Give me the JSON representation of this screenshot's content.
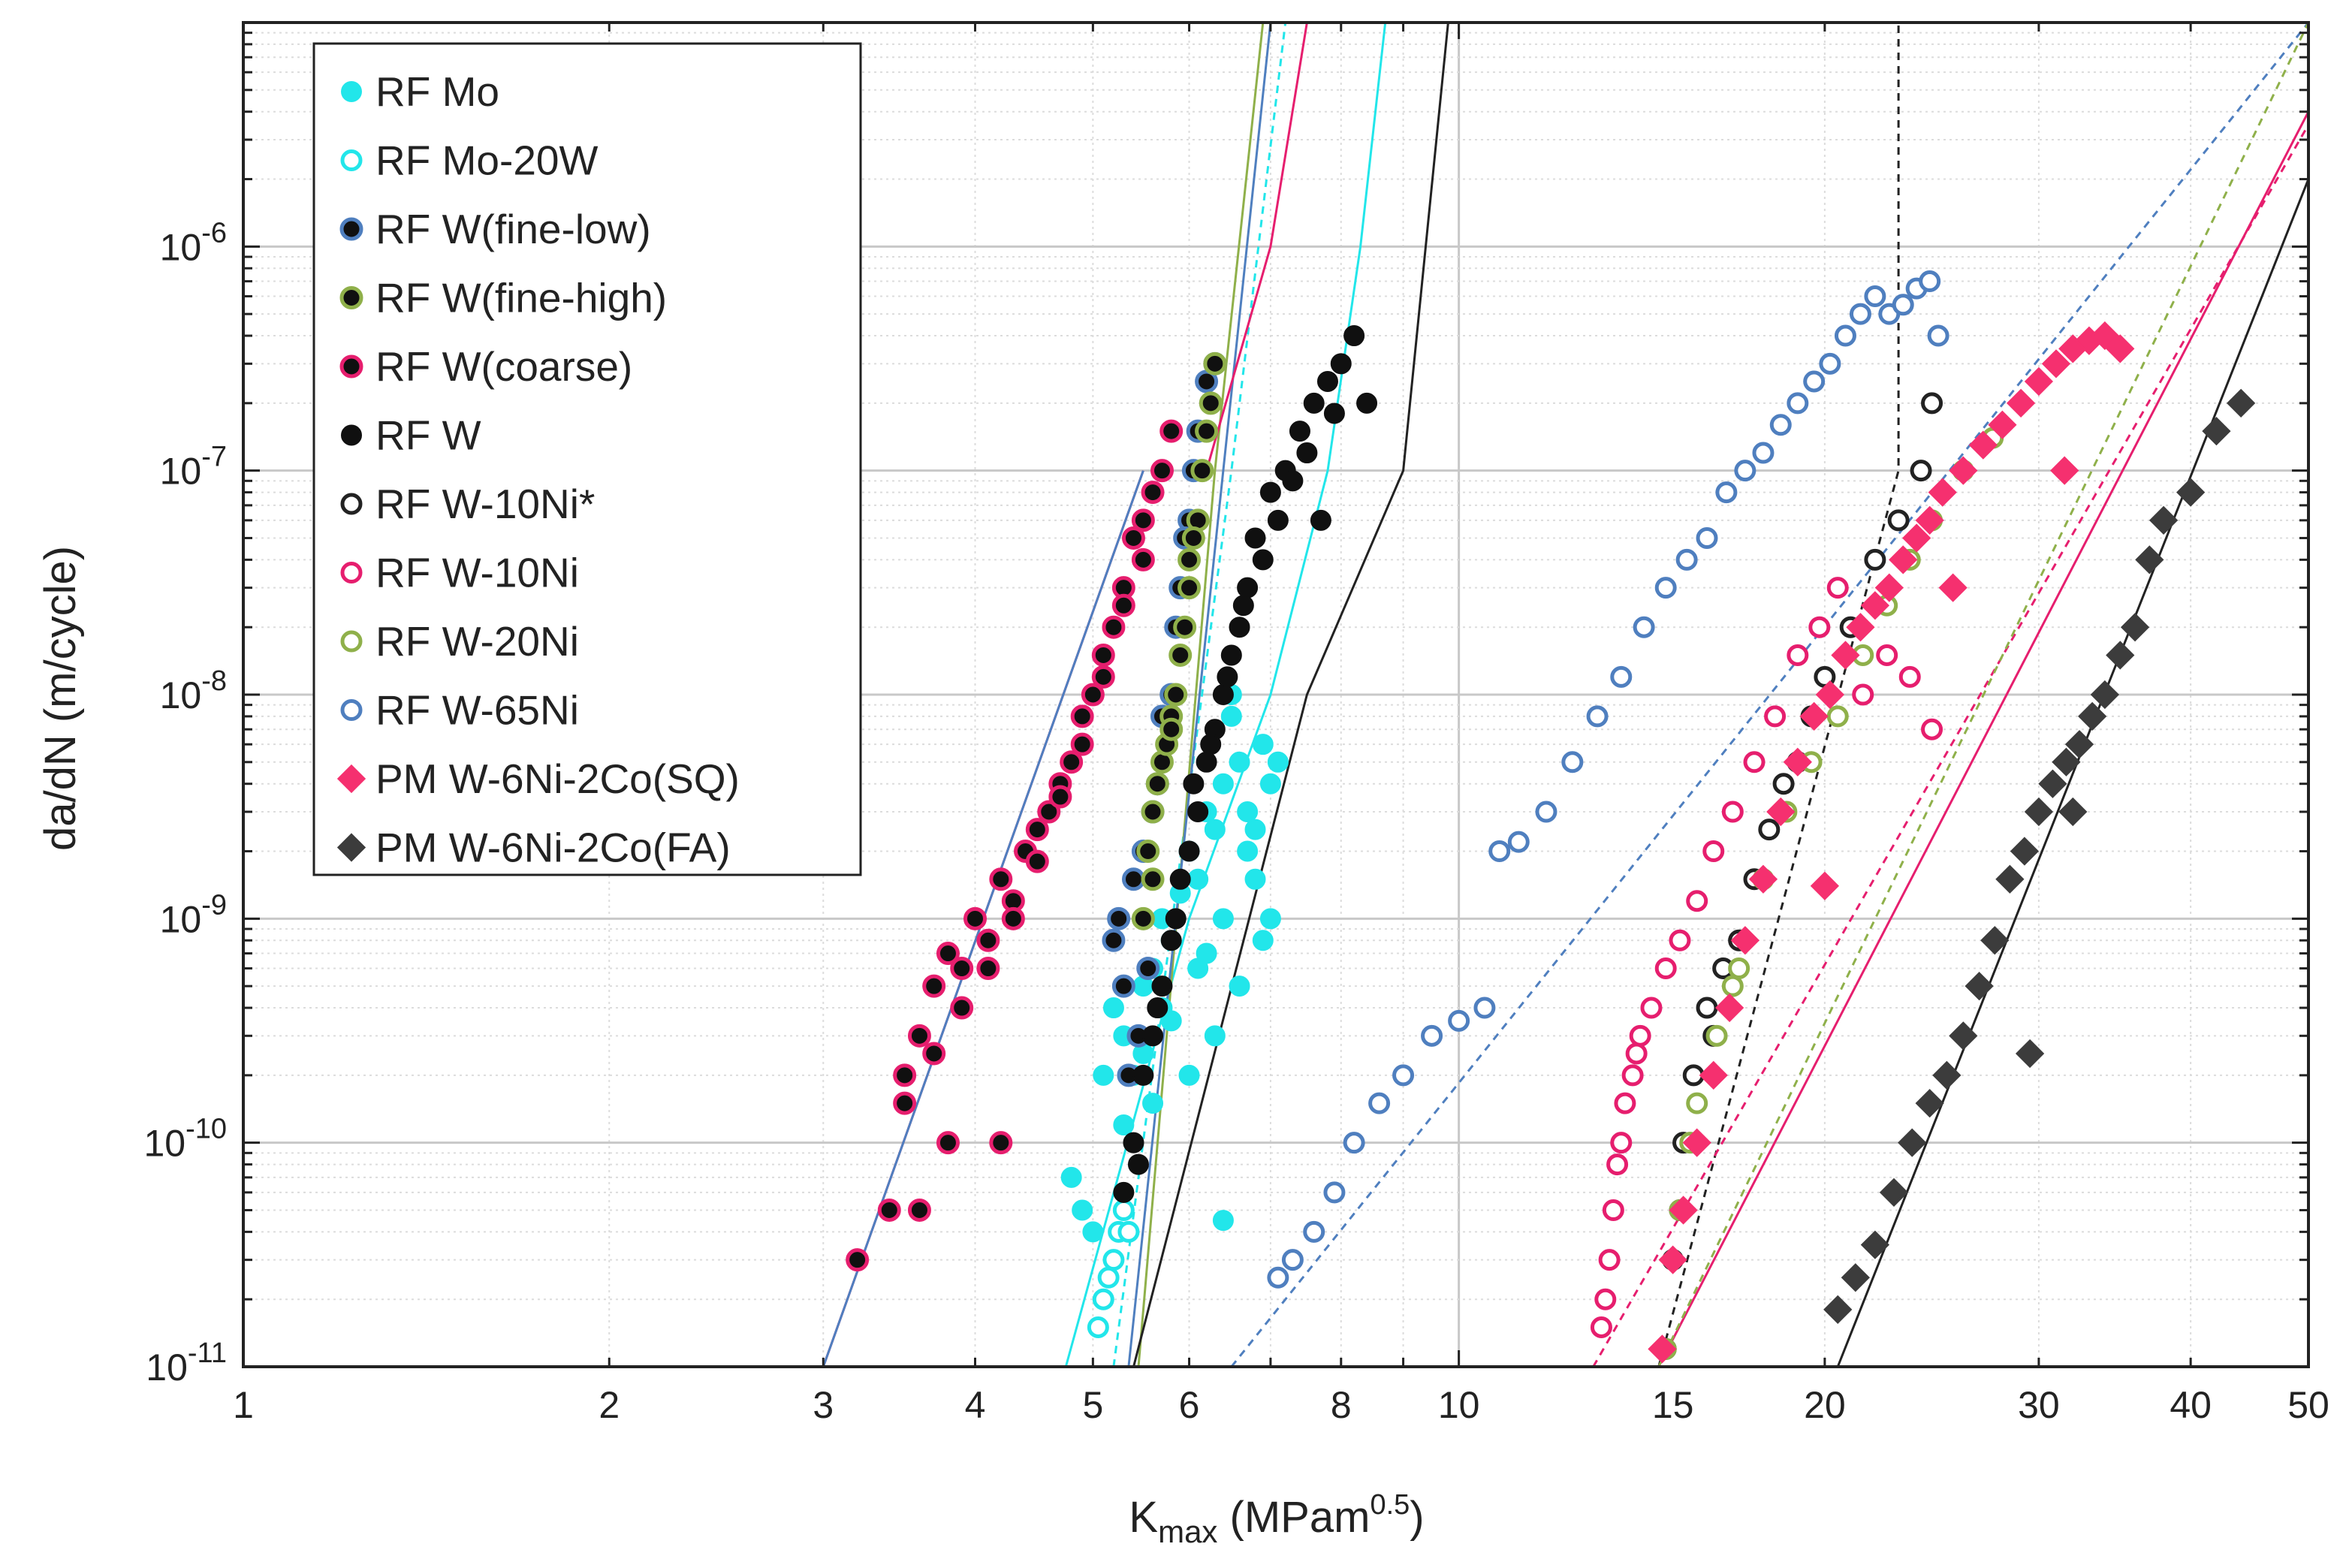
{
  "chart_data": {
    "type": "scatter",
    "x_scale": "log",
    "y_scale": "log",
    "xlim": [
      1,
      50
    ],
    "ylim": [
      1e-11,
      1e-05
    ],
    "grid": "on (major and minor)",
    "legend_position": "top-left",
    "xlabel": {
      "main": "K",
      "sub": "max",
      "unit": " (MPam",
      "sup": "0.5",
      "close": ")"
    },
    "ylabel": "da/dN (m/cycle)",
    "x_ticks": [
      {
        "value": 1,
        "label": "1"
      },
      {
        "value": 2,
        "label": "2"
      },
      {
        "value": 3,
        "label": "3"
      },
      {
        "value": 4,
        "label": "4"
      },
      {
        "value": 5,
        "label": "5"
      },
      {
        "value": 6,
        "label": "6"
      },
      {
        "value": 8,
        "label": "8"
      },
      {
        "value": 10,
        "label": "10"
      },
      {
        "value": 15,
        "label": "15"
      },
      {
        "value": 20,
        "label": "20"
      },
      {
        "value": 30,
        "label": "30"
      },
      {
        "value": 40,
        "label": "40"
      },
      {
        "value": 50,
        "label": "50"
      }
    ],
    "y_ticks": [
      {
        "value": 1e-11,
        "base": "10",
        "exp": "-11"
      },
      {
        "value": 1e-10,
        "base": "10",
        "exp": "-10"
      },
      {
        "value": 1e-09,
        "base": "10",
        "exp": "-9"
      },
      {
        "value": 1e-08,
        "base": "10",
        "exp": "-8"
      },
      {
        "value": 1e-07,
        "base": "10",
        "exp": "-7"
      },
      {
        "value": 1e-06,
        "base": "10",
        "exp": "-6"
      }
    ],
    "series": [
      {
        "name": "RF Mo",
        "marker": "circle",
        "fill": "#22e6ea",
        "edge": "#22e6ea",
        "x": [
          4.8,
          4.9,
          5.0,
          5.1,
          5.2,
          5.3,
          5.4,
          5.5,
          5.6,
          5.7,
          5.8,
          5.9,
          6.0,
          6.1,
          6.2,
          6.3,
          6.4,
          6.5,
          6.6,
          6.7,
          6.8,
          6.9,
          7.0,
          5.5,
          5.8,
          6.1,
          6.4,
          6.7,
          7.0,
          5.3,
          5.6,
          6.0,
          6.3,
          6.6,
          6.9,
          5.7,
          6.2,
          6.5,
          6.8,
          7.1,
          6.4
        ],
        "y": [
          7e-11,
          5e-11,
          4e-11,
          2e-10,
          4e-10,
          3e-10,
          2e-10,
          5e-10,
          6e-10,
          1e-09,
          8e-10,
          1.3e-09,
          2e-09,
          1.5e-09,
          3e-09,
          2.5e-09,
          4e-09,
          1e-08,
          5e-09,
          3e-09,
          1.5e-09,
          6e-09,
          4e-09,
          2.5e-10,
          3.5e-10,
          6e-10,
          1e-09,
          2e-09,
          1e-09,
          1.2e-10,
          1.5e-10,
          2e-10,
          3e-10,
          5e-10,
          8e-10,
          4e-10,
          7e-10,
          8e-09,
          2.5e-09,
          5e-09,
          4.5e-11
        ]
      },
      {
        "name": "RF Mo-20W",
        "marker": "circle",
        "fill": "none",
        "edge": "#22e6ea",
        "x": [
          5.05,
          5.1,
          5.15,
          5.2,
          5.25,
          5.3,
          5.35
        ],
        "y": [
          1.5e-11,
          2e-11,
          2.5e-11,
          3e-11,
          4e-11,
          5e-11,
          4e-11
        ]
      },
      {
        "name": "RF W(fine-low)",
        "marker": "circle",
        "fill": "#101010",
        "edge": "#4f7fbf",
        "x": [
          5.2,
          5.3,
          5.4,
          5.5,
          5.6,
          5.7,
          5.8,
          5.9,
          6.0,
          6.1,
          6.2,
          5.35,
          5.45,
          5.65,
          5.85,
          6.05,
          6.3,
          5.25,
          5.55,
          5.95
        ],
        "y": [
          8e-10,
          5e-10,
          1.5e-09,
          2e-09,
          3e-09,
          8e-09,
          1e-08,
          3e-08,
          6e-08,
          1.5e-07,
          2.5e-07,
          2e-10,
          3e-10,
          4e-09,
          2e-08,
          1e-07,
          3e-07,
          1e-09,
          6e-10,
          5e-08
        ]
      },
      {
        "name": "RF W(fine-high)",
        "marker": "circle",
        "fill": "#101010",
        "edge": "#8fb04a",
        "x": [
          5.5,
          5.55,
          5.6,
          5.7,
          5.8,
          5.9,
          6.0,
          6.1,
          6.2,
          6.3,
          5.65,
          5.75,
          5.85,
          5.95,
          6.05,
          6.15,
          6.25,
          5.6,
          5.8,
          6.0
        ],
        "y": [
          1e-09,
          2e-09,
          3e-09,
          5e-09,
          8e-09,
          1.5e-08,
          3e-08,
          6e-08,
          1.5e-07,
          3e-07,
          4e-09,
          6e-09,
          1e-08,
          2e-08,
          5e-08,
          1e-07,
          2e-07,
          1.5e-09,
          7e-09,
          4e-08
        ]
      },
      {
        "name": "RF W(coarse)",
        "marker": "circle",
        "fill": "#101010",
        "edge": "#e61e6e",
        "x": [
          3.2,
          3.4,
          3.5,
          3.6,
          3.7,
          3.8,
          3.9,
          4.0,
          4.1,
          4.2,
          4.3,
          4.4,
          4.5,
          4.6,
          4.7,
          4.8,
          4.9,
          5.0,
          5.1,
          5.2,
          5.3,
          5.4,
          5.5,
          5.6,
          5.7,
          5.8,
          3.5,
          3.7,
          3.9,
          4.1,
          4.3,
          4.5,
          4.7,
          4.9,
          5.1,
          5.3,
          5.5,
          3.6,
          3.8,
          4.2
        ],
        "y": [
          3e-11,
          5e-11,
          1.5e-10,
          3e-10,
          5e-10,
          7e-10,
          6e-10,
          1e-09,
          8e-10,
          1.5e-09,
          1.2e-09,
          2e-09,
          2.5e-09,
          3e-09,
          4e-09,
          5e-09,
          8e-09,
          1e-08,
          1.5e-08,
          2e-08,
          3e-08,
          5e-08,
          6e-08,
          8e-08,
          1e-07,
          1.5e-07,
          2e-10,
          2.5e-10,
          4e-10,
          6e-10,
          1e-09,
          1.8e-09,
          3.5e-09,
          6e-09,
          1.2e-08,
          2.5e-08,
          4e-08,
          5e-11,
          1e-10,
          1e-10
        ]
      },
      {
        "name": "RF W",
        "marker": "circle",
        "fill": "#101010",
        "edge": "#101010",
        "x": [
          5.3,
          5.4,
          5.5,
          5.6,
          5.7,
          5.8,
          5.9,
          6.0,
          6.1,
          6.2,
          6.3,
          6.4,
          6.5,
          6.6,
          6.7,
          6.8,
          7.0,
          7.2,
          7.4,
          7.6,
          7.8,
          8.0,
          8.2,
          8.4,
          5.45,
          5.65,
          5.85,
          6.05,
          6.25,
          6.45,
          6.65,
          6.9,
          7.1,
          7.3,
          7.5,
          7.7,
          7.9
        ],
        "y": [
          6e-11,
          1e-10,
          2e-10,
          3e-10,
          5e-10,
          8e-10,
          1.5e-09,
          2e-09,
          3e-09,
          5e-09,
          7e-09,
          1e-08,
          1.5e-08,
          2e-08,
          3e-08,
          5e-08,
          8e-08,
          1e-07,
          1.5e-07,
          2e-07,
          2.5e-07,
          3e-07,
          4e-07,
          2e-07,
          8e-11,
          4e-10,
          1e-09,
          4e-09,
          6e-09,
          1.2e-08,
          2.5e-08,
          4e-08,
          6e-08,
          9e-08,
          1.2e-07,
          6e-08,
          1.8e-07
        ]
      },
      {
        "name": "RF W-10Ni*",
        "marker": "circle",
        "fill": "none",
        "edge": "#222222",
        "x": [
          14.8,
          15.0,
          15.3,
          15.6,
          16.0,
          16.5,
          17.0,
          17.5,
          18.0,
          18.5,
          19.0,
          19.5,
          20.0,
          21.0,
          22.0,
          23.0,
          24.0,
          24.5,
          15.2,
          16.2
        ],
        "y": [
          1.2e-11,
          3e-11,
          1e-10,
          2e-10,
          4e-10,
          6e-10,
          8e-10,
          1.5e-09,
          2.5e-09,
          4e-09,
          5e-09,
          8e-09,
          1.2e-08,
          2e-08,
          4e-08,
          6e-08,
          1e-07,
          2e-07,
          5e-11,
          3e-10
        ]
      },
      {
        "name": "RF W-10Ni",
        "marker": "circle",
        "fill": "none",
        "edge": "#e61e6e",
        "x": [
          13.1,
          13.2,
          13.3,
          13.4,
          13.5,
          13.7,
          13.9,
          14.1,
          14.4,
          14.8,
          15.2,
          15.7,
          16.2,
          16.8,
          17.5,
          18.2,
          19.0,
          19.8,
          20.5,
          21.5,
          22.5,
          23.5,
          24.5,
          13.6,
          14.0
        ],
        "y": [
          1.5e-11,
          2e-11,
          3e-11,
          5e-11,
          8e-11,
          1.5e-10,
          2e-10,
          3e-10,
          4e-10,
          6e-10,
          8e-10,
          1.2e-09,
          2e-09,
          3e-09,
          5e-09,
          8e-09,
          1.5e-08,
          2e-08,
          3e-08,
          1e-08,
          1.5e-08,
          1.2e-08,
          7e-09,
          1e-10,
          2.5e-10
        ]
      },
      {
        "name": "RF W-20Ni",
        "marker": "circle",
        "fill": "none",
        "edge": "#8fb04a",
        "x": [
          14.8,
          15.2,
          15.7,
          16.3,
          17.0,
          17.8,
          18.6,
          19.5,
          20.5,
          21.5,
          22.5,
          23.5,
          24.5,
          26.0,
          27.5,
          15.5,
          16.8
        ],
        "y": [
          1.2e-11,
          5e-11,
          1.5e-10,
          3e-10,
          6e-10,
          1.5e-09,
          3e-09,
          5e-09,
          8e-09,
          1.5e-08,
          2.5e-08,
          4e-08,
          6e-08,
          1e-07,
          1.4e-07,
          1e-10,
          5e-10
        ]
      },
      {
        "name": "RF W-65Ni",
        "marker": "circle",
        "fill": "none",
        "edge": "#4f7fbf",
        "x": [
          7.1,
          7.3,
          7.6,
          7.9,
          8.2,
          8.6,
          9.0,
          9.5,
          10.0,
          10.5,
          10.8,
          11.2,
          11.8,
          12.4,
          13.0,
          13.6,
          14.2,
          14.8,
          15.4,
          16.0,
          16.6,
          17.2,
          17.8,
          18.4,
          19.0,
          19.6,
          20.2,
          20.8,
          21.4,
          22.0,
          22.6,
          23.2,
          23.8,
          24.4,
          24.8
        ],
        "y": [
          2.5e-11,
          3e-11,
          4e-11,
          6e-11,
          1e-10,
          1.5e-10,
          2e-10,
          3e-10,
          3.5e-10,
          4e-10,
          2e-09,
          2.2e-09,
          3e-09,
          5e-09,
          8e-09,
          1.2e-08,
          2e-08,
          3e-08,
          4e-08,
          5e-08,
          8e-08,
          1e-07,
          1.2e-07,
          1.6e-07,
          2e-07,
          2.5e-07,
          3e-07,
          4e-07,
          5e-07,
          6e-07,
          5e-07,
          5.5e-07,
          6.5e-07,
          7e-07,
          4e-07
        ]
      },
      {
        "name": "PM W-6Ni-2Co(SQ)",
        "marker": "diamond",
        "fill": "#f5306f",
        "edge": "#f5306f",
        "x": [
          14.7,
          15.0,
          15.3,
          15.7,
          16.2,
          16.7,
          17.2,
          17.8,
          18.4,
          19.0,
          19.6,
          20.2,
          20.8,
          21.4,
          22.0,
          22.6,
          23.2,
          23.8,
          24.4,
          25.0,
          26.0,
          27.0,
          28.0,
          29.0,
          30.0,
          31.0,
          32.0,
          33.0,
          34.0,
          35.0,
          20.0,
          25.5,
          31.5
        ],
        "y": [
          1.2e-11,
          3e-11,
          5e-11,
          1e-10,
          2e-10,
          4e-10,
          8e-10,
          1.5e-09,
          3e-09,
          5e-09,
          8e-09,
          1e-08,
          1.5e-08,
          2e-08,
          2.5e-08,
          3e-08,
          4e-08,
          5e-08,
          6e-08,
          8e-08,
          1e-07,
          1.3e-07,
          1.6e-07,
          2e-07,
          2.5e-07,
          3e-07,
          3.5e-07,
          3.8e-07,
          4e-07,
          3.5e-07,
          1.4e-09,
          3e-08,
          1e-07
        ]
      },
      {
        "name": "PM W-6Ni-2Co(FA)",
        "marker": "diamond",
        "fill": "#3c3c3c",
        "edge": "#3c3c3c",
        "x": [
          20.5,
          21.2,
          22.0,
          22.8,
          23.6,
          24.4,
          25.2,
          26.0,
          26.8,
          27.6,
          28.4,
          29.2,
          30.0,
          30.8,
          31.6,
          32.4,
          33.2,
          34.0,
          35.0,
          36.0,
          37.0,
          38.0,
          40.0,
          42.0,
          44.0,
          29.5,
          32.0
        ],
        "y": [
          1.8e-11,
          2.5e-11,
          3.5e-11,
          6e-11,
          1e-10,
          1.5e-10,
          2e-10,
          3e-10,
          5e-10,
          8e-10,
          1.5e-09,
          2e-09,
          3e-09,
          4e-09,
          5e-09,
          6e-09,
          8e-09,
          1e-08,
          1.5e-08,
          2e-08,
          4e-08,
          6e-08,
          8e-08,
          1.5e-07,
          2e-07,
          2.5e-10,
          3e-09
        ]
      }
    ],
    "fit_lines": [
      {
        "color": "#e61e6e",
        "dash": false,
        "x": [
          3.0,
          5.5
        ],
        "y": [
          1e-11,
          1e-07
        ]
      },
      {
        "color": "#4f7fbf",
        "dash": false,
        "x": [
          3.0,
          5.5
        ],
        "y": [
          1e-11,
          1e-07
        ]
      },
      {
        "color": "#22e6ea",
        "dash": false,
        "x": [
          4.75,
          6.0,
          7.0,
          7.8,
          8.3,
          8.7
        ],
        "y": [
          1e-11,
          1e-09,
          1e-08,
          1e-07,
          1e-06,
          1e-05
        ]
      },
      {
        "color": "#22e6ea",
        "dash": true,
        "x": [
          5.2,
          6.5,
          7.2
        ],
        "y": [
          1e-11,
          1e-07,
          1e-05
        ]
      },
      {
        "color": "#8fb04a",
        "dash": false,
        "x": [
          5.45,
          6.3,
          6.9
        ],
        "y": [
          1e-11,
          1e-07,
          1e-05
        ]
      },
      {
        "color": "#4f7fbf",
        "dash": false,
        "x": [
          5.35,
          6.4,
          7.0
        ],
        "y": [
          1e-11,
          1e-07,
          1e-05
        ]
      },
      {
        "color": "#e61e6e",
        "dash": false,
        "x": [
          6.2,
          7.0,
          7.5
        ],
        "y": [
          1e-07,
          1e-06,
          1e-05
        ]
      },
      {
        "color": "#222222",
        "dash": false,
        "x": [
          5.4,
          7.5,
          9.0,
          9.8
        ],
        "y": [
          1e-11,
          1e-08,
          1e-07,
          1e-05
        ]
      },
      {
        "color": "#4f7fbf",
        "dash": true,
        "x": [
          6.5,
          50.0
        ],
        "y": [
          1e-11,
          1e-05
        ]
      },
      {
        "color": "#222222",
        "dash": true,
        "x": [
          14.6,
          23.0,
          23.0
        ],
        "y": [
          1e-11,
          1e-07,
          1e-05
        ]
      },
      {
        "color": "#e61e6e",
        "dash": true,
        "x": [
          12.9,
          50.0
        ],
        "y": [
          1e-11,
          3.5e-06
        ]
      },
      {
        "color": "#e61e6e",
        "dash": false,
        "x": [
          14.6,
          50.0
        ],
        "y": [
          1e-11,
          4e-06
        ]
      },
      {
        "color": "#8fb04a",
        "dash": true,
        "x": [
          14.6,
          50.0
        ],
        "y": [
          1e-11,
          1e-05
        ]
      },
      {
        "color": "#222222",
        "dash": false,
        "x": [
          20.5,
          50.0
        ],
        "y": [
          1e-11,
          2e-06
        ]
      }
    ]
  }
}
